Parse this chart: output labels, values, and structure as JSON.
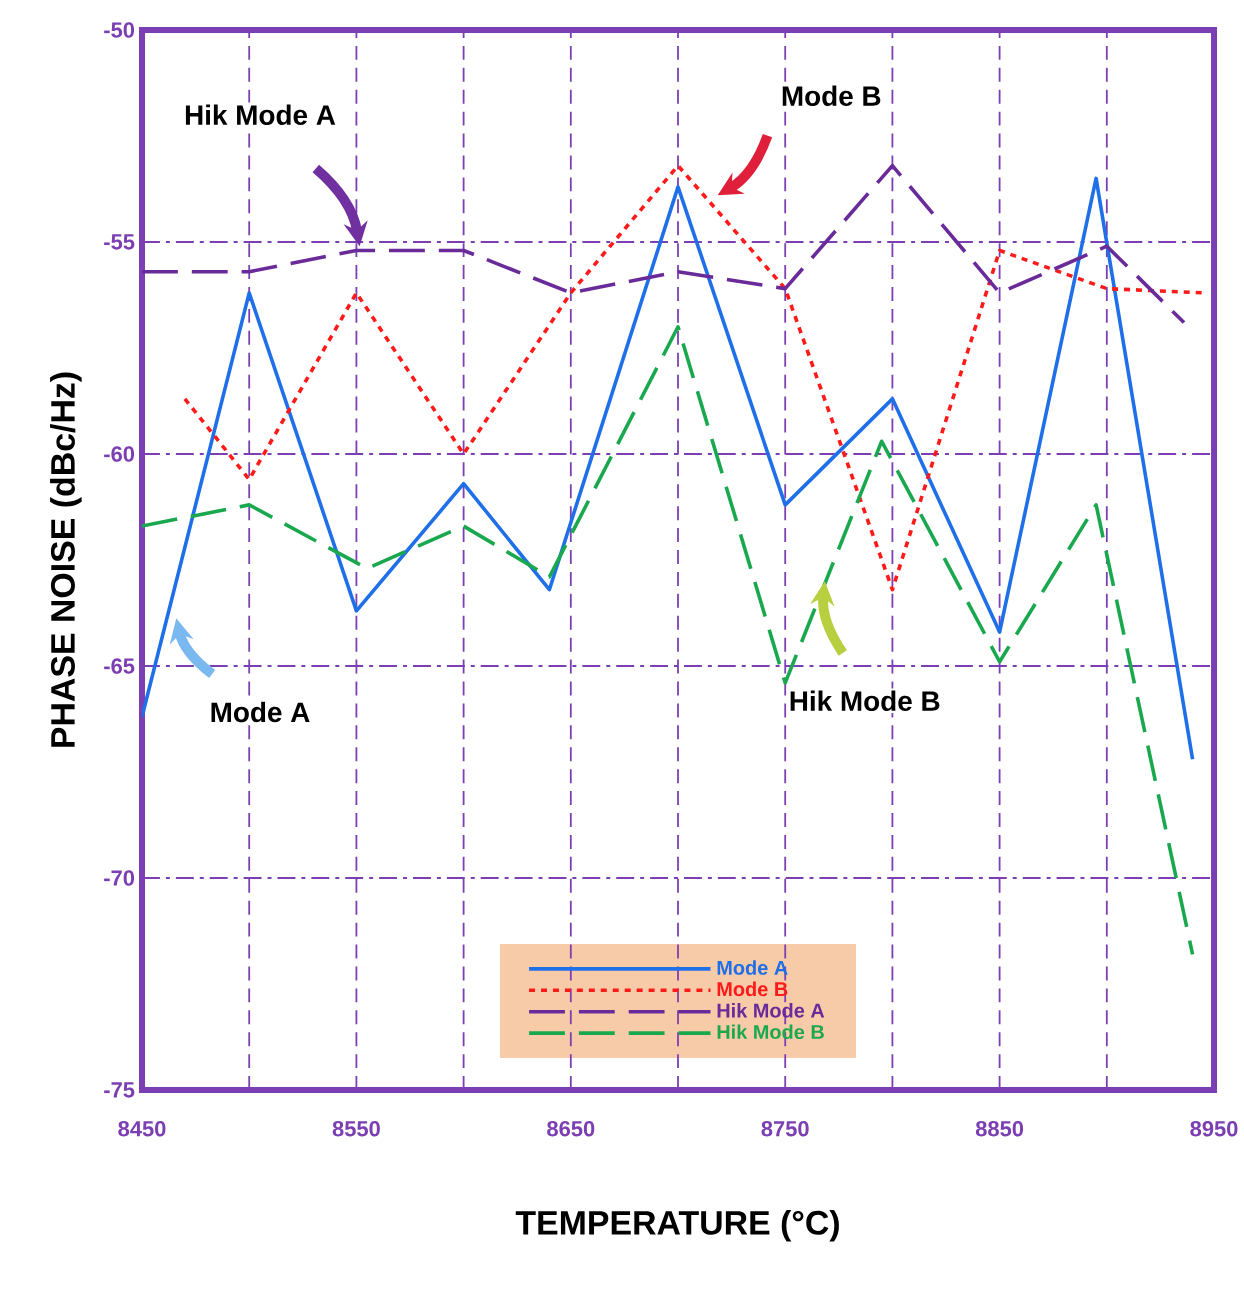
{
  "chart_data": {
    "type": "line",
    "xlabel": "TEMPERATURE (°C)",
    "ylabel": "PHASE NOISE (dBc/Hz)",
    "xlim": [
      8450,
      8950
    ],
    "ylim": [
      -75,
      -50
    ],
    "xticks": [
      8450,
      {
        "value": 8500,
        "label": null
      },
      8550,
      {
        "value": 8600,
        "label": null
      },
      8650,
      {
        "value": 8700,
        "label": null
      },
      8750,
      {
        "value": 8800,
        "label": null
      },
      8850,
      {
        "value": 8900,
        "label": null
      },
      8950
    ],
    "yticks": [
      -75,
      -70,
      -65,
      -60,
      -55,
      -50
    ],
    "grid": true,
    "legend": "bottom",
    "series": [
      {
        "name": "Mode A",
        "color": "#1f6fe8",
        "line_style": "solid",
        "x": [
          8450,
          8500,
          8550,
          8600,
          8640,
          8700,
          8750,
          8800,
          8850,
          8895,
          8940
        ],
        "values": [
          -66.2,
          -56.2,
          -63.7,
          -60.7,
          -63.2,
          -53.7,
          -61.2,
          -58.7,
          -64.2,
          -53.5,
          -67.2
        ]
      },
      {
        "name": "Mode B",
        "color": "#ff1a1a",
        "line_style": "dotted",
        "x": [
          8470,
          8500,
          8550,
          8600,
          8650,
          8700,
          8750,
          8800,
          8850,
          8900,
          8945
        ],
        "values": [
          -58.7,
          -60.6,
          -56.2,
          -60.0,
          -56.2,
          -53.2,
          -56.1,
          -63.2,
          -55.2,
          -56.1,
          -56.2
        ]
      },
      {
        "name": "Hik Mode A",
        "color": "#6a2b9a",
        "line_style": "dashed",
        "x": [
          8450,
          8500,
          8550,
          8600,
          8650,
          8700,
          8750,
          8800,
          8850,
          8900,
          8936
        ],
        "values": [
          -55.7,
          -55.7,
          -55.2,
          -55.2,
          -56.2,
          -55.7,
          -56.1,
          -53.2,
          -56.2,
          -55.1,
          -56.9
        ]
      },
      {
        "name": "Hik Mode B",
        "color": "#1aa84f",
        "line_style": "dashed",
        "x": [
          8450,
          8500,
          8555,
          8600,
          8640,
          8700,
          8750,
          8795,
          8850,
          8895,
          8940
        ],
        "values": [
          -61.7,
          -61.2,
          -62.7,
          -61.7,
          -62.9,
          -57.0,
          -65.4,
          -59.7,
          -64.9,
          -61.2,
          -71.8
        ]
      }
    ],
    "annotations": [
      "Hik  Mode A",
      "Mode B",
      "Mode A",
      "Hik  Mode B"
    ]
  }
}
